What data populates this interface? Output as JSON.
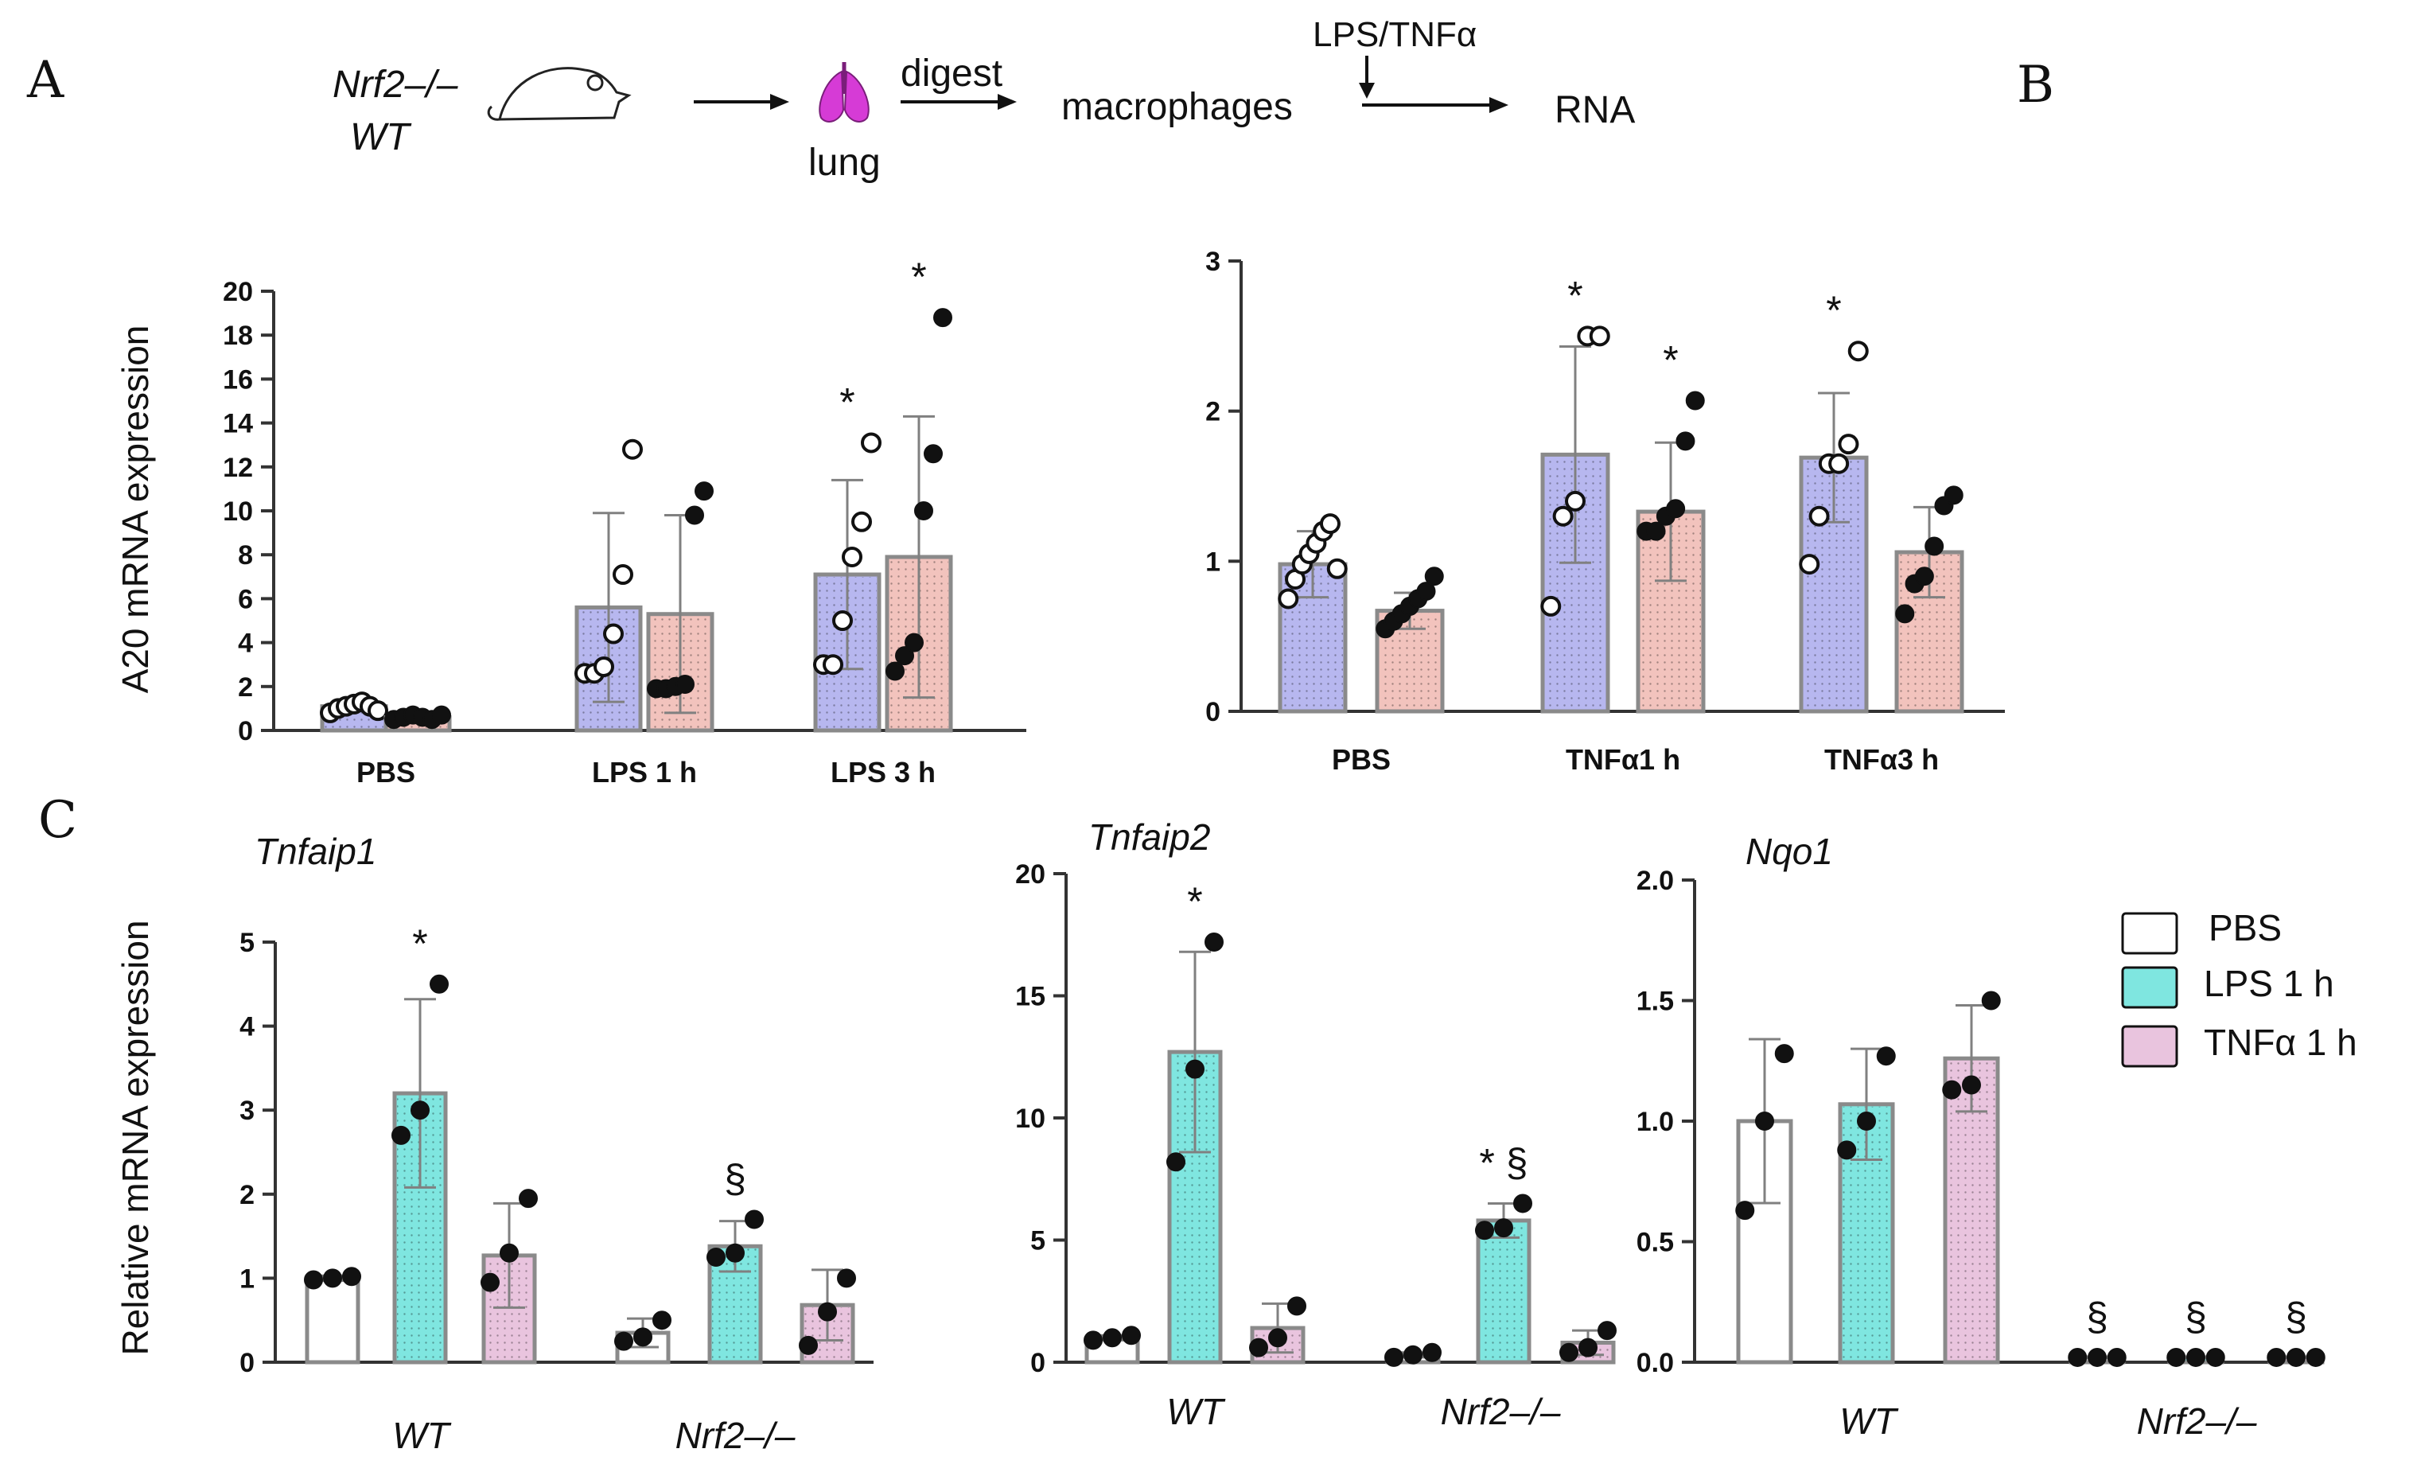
{
  "panels": {
    "a": "A",
    "b": "B",
    "c": "C"
  },
  "scheme": {
    "genotype_ko": "Nrf2–/–",
    "genotype_wt": "WT",
    "organ": "lung",
    "step_digest": "digest",
    "cells": "macrophages",
    "stimulus": "LPS/TNFα",
    "product": "RNA"
  },
  "colors": {
    "wt_bar": "#b7b7ef",
    "ko_bar": "#f2c3bd",
    "pbs_bar": "#ffffff",
    "lps_bar": "#7fe6e0",
    "tnf_bar": "#e9c4de",
    "lung": "#d63bd6",
    "axis": "#333333",
    "error": "#808080"
  },
  "legend": {
    "items": [
      {
        "label": "PBS",
        "color": "#ffffff"
      },
      {
        "label": "LPS 1 h",
        "color": "#7fe6e0"
      },
      {
        "label": "TNFα 1 h",
        "color": "#e9c4de"
      }
    ]
  },
  "chart_data": [
    {
      "id": "A",
      "type": "bar",
      "ylabel": "A20 mRNA expression",
      "ylim": [
        0,
        20
      ],
      "yticks": [
        0,
        2,
        4,
        6,
        8,
        10,
        12,
        14,
        16,
        18,
        20
      ],
      "categories": [
        "PBS",
        "LPS 1 h",
        "LPS 3 h"
      ],
      "series": [
        {
          "name": "WT",
          "values": [
            1.1,
            5.6,
            7.1
          ],
          "sd": [
            0.2,
            4.3,
            4.3
          ],
          "points": [
            [
              0.8,
              1.0,
              1.1,
              1.2,
              1.3,
              1.1,
              0.9
            ],
            [
              2.6,
              2.6,
              2.9,
              4.4,
              7.1,
              12.8
            ],
            [
              3.0,
              3.0,
              5.0,
              7.9,
              9.5,
              13.1
            ]
          ],
          "marks": [
            "",
            "",
            "*"
          ]
        },
        {
          "name": "Nrf2–/–",
          "values": [
            0.6,
            5.3,
            7.9
          ],
          "sd": [
            0.1,
            4.5,
            6.4
          ],
          "points": [
            [
              0.5,
              0.6,
              0.7,
              0.6,
              0.5,
              0.7
            ],
            [
              1.9,
              1.9,
              2.0,
              2.1,
              9.8,
              10.9
            ],
            [
              2.7,
              3.4,
              4.0,
              10.0,
              12.6,
              18.8
            ]
          ],
          "marks": [
            "",
            "",
            "*"
          ]
        }
      ]
    },
    {
      "id": "B",
      "type": "bar",
      "ylim": [
        0,
        3
      ],
      "yticks": [
        0,
        1,
        2,
        3
      ],
      "categories": [
        "PBS",
        "TNFα1 h",
        "TNFα3 h"
      ],
      "series": [
        {
          "name": "WT",
          "values": [
            0.98,
            1.71,
            1.69
          ],
          "sd": [
            0.22,
            0.72,
            0.43
          ],
          "points": [
            [
              0.75,
              0.88,
              0.98,
              1.05,
              1.12,
              1.2,
              1.25,
              0.95
            ],
            [
              0.7,
              1.3,
              1.4,
              2.5,
              2.5
            ],
            [
              0.98,
              1.3,
              1.65,
              1.65,
              1.78,
              2.4
            ]
          ],
          "marks": [
            "",
            "*",
            "*"
          ]
        },
        {
          "name": "Nrf2–/–",
          "values": [
            0.67,
            1.33,
            1.06
          ],
          "sd": [
            0.12,
            0.46,
            0.3
          ],
          "points": [
            [
              0.55,
              0.6,
              0.65,
              0.7,
              0.75,
              0.8,
              0.9
            ],
            [
              1.2,
              1.2,
              1.3,
              1.35,
              1.8,
              2.07
            ],
            [
              0.65,
              0.85,
              0.9,
              1.1,
              1.37,
              1.44
            ]
          ],
          "marks": [
            "",
            "*",
            ""
          ]
        }
      ]
    },
    {
      "id": "C1",
      "type": "bar",
      "title": "Tnfaip1",
      "ylabel": "Relative mRNA expression",
      "ylim": [
        0,
        5
      ],
      "yticks": [
        0,
        1,
        2,
        3,
        4,
        5
      ],
      "groups": [
        "WT",
        "Nrf2–/–"
      ],
      "series": [
        {
          "name": "PBS",
          "values": [
            1.0,
            0.35
          ],
          "sd": [
            0.03,
            0.17
          ],
          "points": [
            [
              0.98,
              1.0,
              1.02
            ],
            [
              0.25,
              0.3,
              0.5
            ]
          ],
          "marks": [
            "",
            ""
          ]
        },
        {
          "name": "LPS 1 h",
          "values": [
            3.2,
            1.38
          ],
          "sd": [
            1.12,
            0.3
          ],
          "points": [
            [
              2.7,
              3.0,
              4.5
            ],
            [
              1.25,
              1.3,
              1.7
            ]
          ],
          "marks": [
            "*",
            "§"
          ]
        },
        {
          "name": "TNFα 1 h",
          "values": [
            1.27,
            0.68
          ],
          "sd": [
            0.62,
            0.42
          ],
          "points": [
            [
              0.95,
              1.3,
              1.95
            ],
            [
              0.2,
              0.6,
              1.0
            ]
          ],
          "marks": [
            "",
            ""
          ]
        }
      ]
    },
    {
      "id": "C2",
      "type": "bar",
      "title": "Tnfaip2",
      "ylim": [
        0,
        20
      ],
      "yticks": [
        0,
        5,
        10,
        15,
        20
      ],
      "groups": [
        "WT",
        "Nrf2–/–"
      ],
      "series": [
        {
          "name": "PBS",
          "values": [
            1.0,
            0.3
          ],
          "sd": [
            0.1,
            0.1
          ],
          "points": [
            [
              0.9,
              1.0,
              1.1
            ],
            [
              0.2,
              0.3,
              0.4
            ]
          ],
          "marks": [
            "",
            ""
          ]
        },
        {
          "name": "LPS 1 h",
          "values": [
            12.7,
            5.8
          ],
          "sd": [
            4.1,
            0.7
          ],
          "points": [
            [
              8.2,
              12.0,
              17.2
            ],
            [
              5.4,
              5.5,
              6.5
            ]
          ],
          "marks": [
            "*",
            "* §"
          ]
        },
        {
          "name": "TNFα 1 h",
          "values": [
            1.4,
            0.8
          ],
          "sd": [
            1.0,
            0.5
          ],
          "points": [
            [
              0.6,
              1.0,
              2.3
            ],
            [
              0.4,
              0.6,
              1.3
            ]
          ],
          "marks": [
            "",
            ""
          ]
        }
      ]
    },
    {
      "id": "C3",
      "type": "bar",
      "title": "Nqo1",
      "ylim": [
        0,
        2.0
      ],
      "yticks": [
        0.0,
        0.5,
        1.0,
        1.5,
        2.0
      ],
      "groups": [
        "WT",
        "Nrf2–/–"
      ],
      "series": [
        {
          "name": "PBS",
          "values": [
            1.0,
            0.02
          ],
          "sd": [
            0.34,
            0.0
          ],
          "points": [
            [
              0.63,
              1.0,
              1.28
            ],
            [
              0.02,
              0.02,
              0.02
            ]
          ],
          "marks": [
            "",
            "§"
          ]
        },
        {
          "name": "LPS 1 h",
          "values": [
            1.07,
            0.02
          ],
          "sd": [
            0.23,
            0.0
          ],
          "points": [
            [
              0.88,
              1.0,
              1.27
            ],
            [
              0.02,
              0.02,
              0.02
            ]
          ],
          "marks": [
            "",
            "§"
          ]
        },
        {
          "name": "TNFα 1 h",
          "values": [
            1.26,
            0.02
          ],
          "sd": [
            0.22,
            0.0
          ],
          "points": [
            [
              1.13,
              1.15,
              1.5
            ],
            [
              0.02,
              0.02,
              0.02
            ]
          ],
          "marks": [
            "",
            "§"
          ]
        }
      ]
    }
  ]
}
